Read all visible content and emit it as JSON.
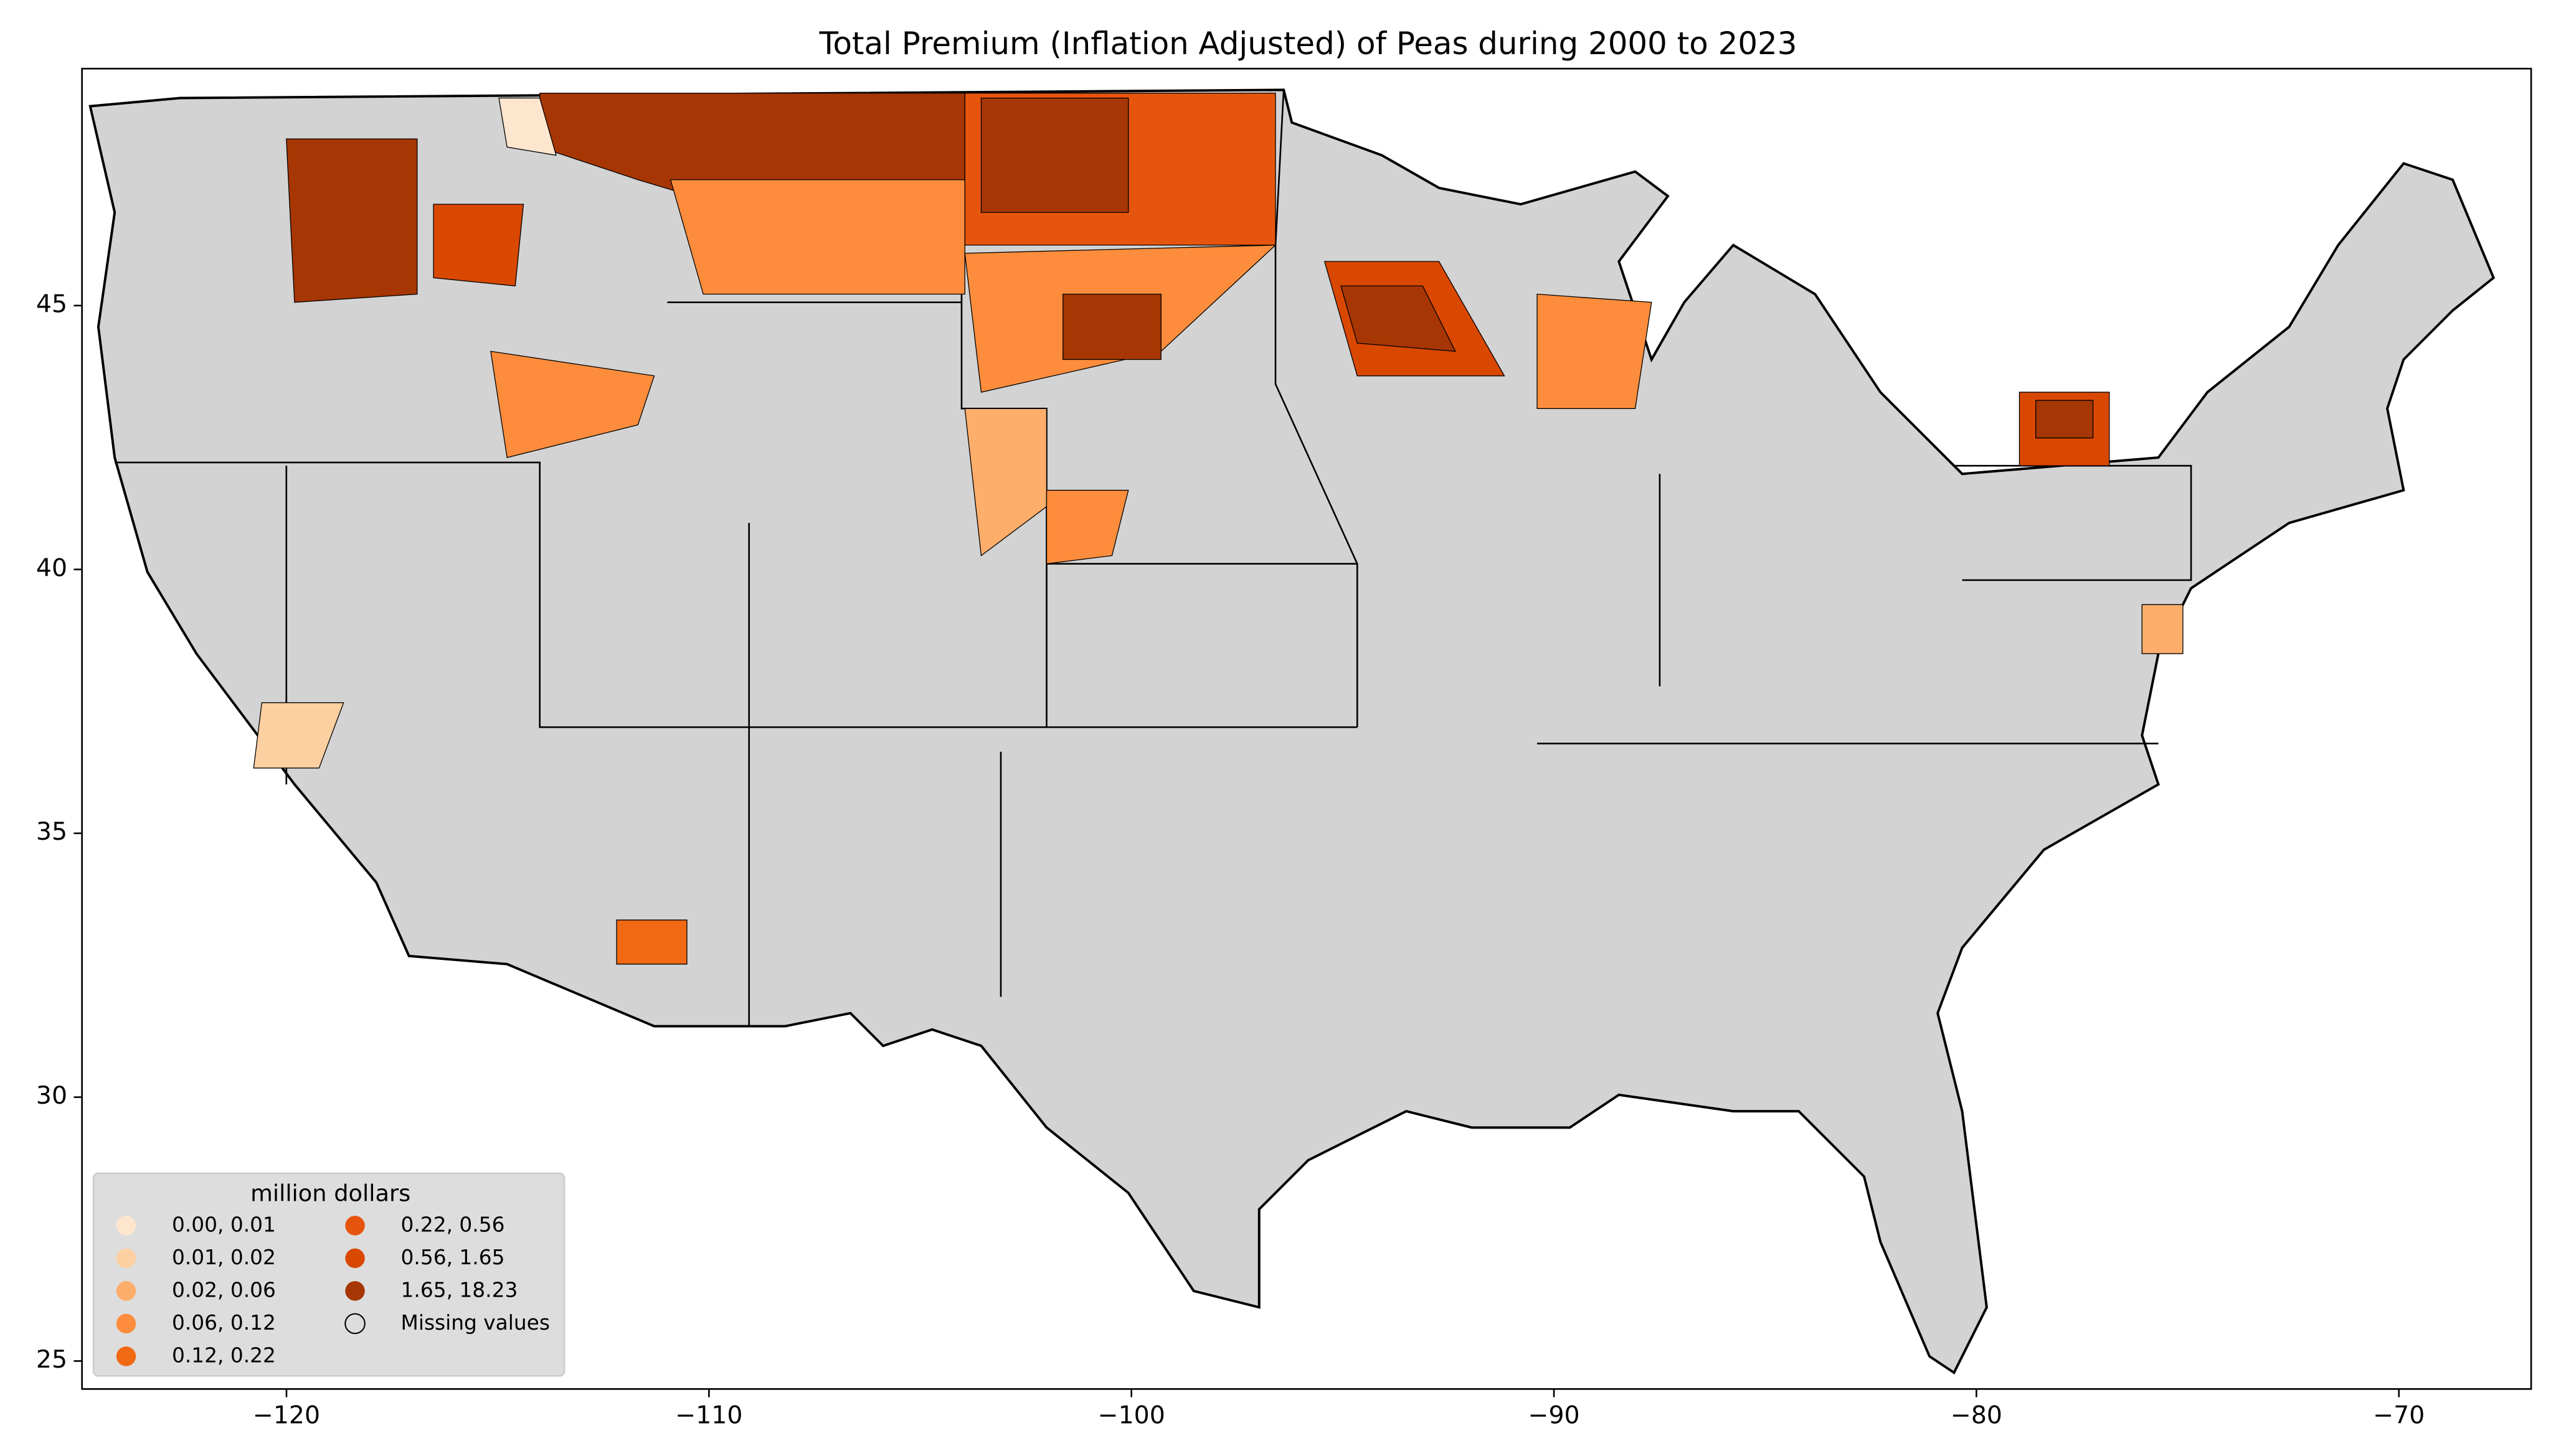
{
  "chart_data": {
    "type": "choropleth",
    "title": "Total  Premium  (Inflation Adjusted) of Peas during 2000 to 2023",
    "xlim": [
      -124.84,
      -66.87
    ],
    "ylim": [
      24.47,
      49.49
    ],
    "xticks": [
      {
        "value": -120,
        "label": "−120"
      },
      {
        "value": -110,
        "label": "−110"
      },
      {
        "value": -100,
        "label": "−100"
      },
      {
        "value": -90,
        "label": "−90"
      },
      {
        "value": -80,
        "label": "−80"
      },
      {
        "value": -70,
        "label": "−70"
      }
    ],
    "yticks": [
      25,
      30,
      35,
      40,
      45
    ],
    "missing_color": "#d3d3d3",
    "legend": {
      "title": "million dollars",
      "items": [
        {
          "label": "0.00,  0.01",
          "color": "#fee6ce"
        },
        {
          "label": "0.01,  0.02",
          "color": "#fdd0a2"
        },
        {
          "label": "0.02,  0.06",
          "color": "#fdae6b"
        },
        {
          "label": "0.06,  0.12",
          "color": "#fd8d3c"
        },
        {
          "label": "0.12,  0.22",
          "color": "#f16913"
        },
        {
          "label": "0.22,  0.56",
          "color": "#e6550d"
        },
        {
          "label": "0.56,  1.65",
          "color": "#d94801"
        },
        {
          "label": "1.65, 18.23",
          "color": "#a63603"
        },
        {
          "label": "Missing values",
          "color": null
        }
      ]
    }
  }
}
